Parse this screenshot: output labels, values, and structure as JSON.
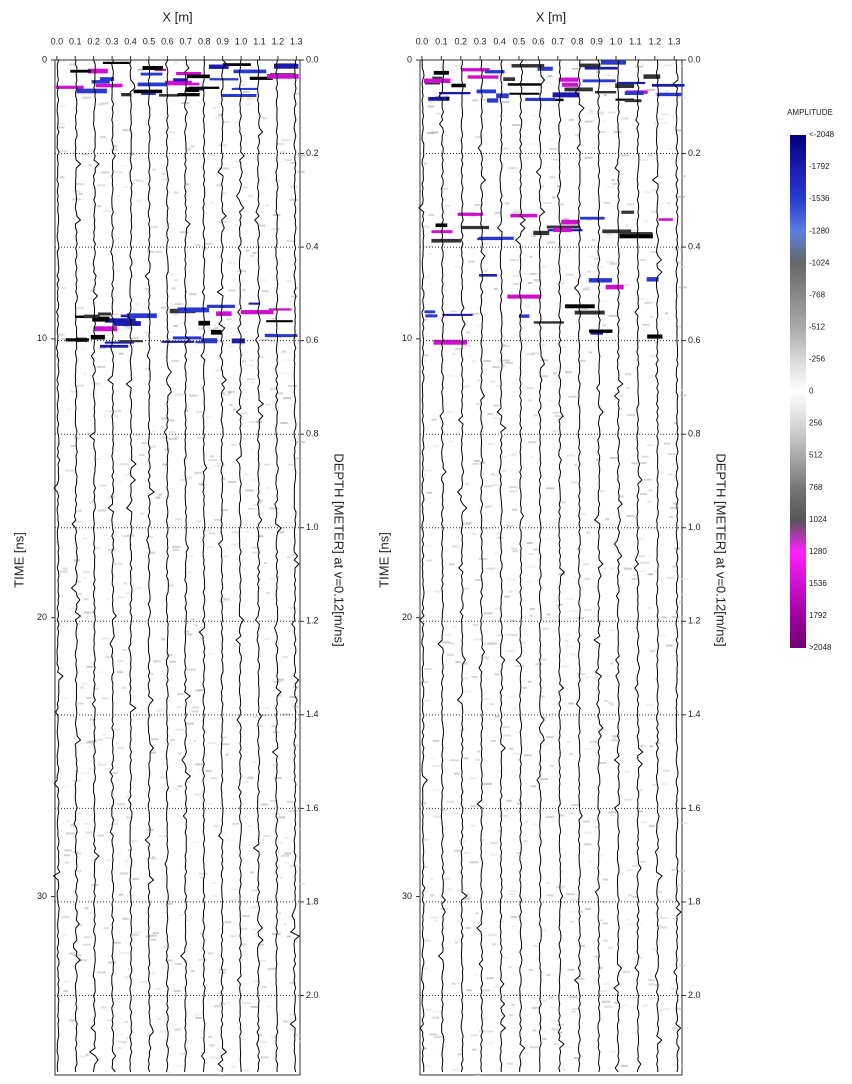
{
  "chart_data": [
    {
      "type": "radargram",
      "xlabel": "X [m]",
      "ylabel": "TIME [ns]",
      "y2label": "DEPTH [METER] at v=0.12[m/ns]",
      "xlim": [
        -0.01,
        1.32
      ],
      "xticks": [
        {
          "value": 0,
          "label": "0.0"
        },
        0.1,
        0.2,
        0.3,
        0.4,
        0.5,
        0.6,
        0.7,
        0.8,
        0.9,
        {
          "value": 1,
          "label": "1.0"
        },
        1.1,
        1.2,
        1.3
      ],
      "ylim": [
        0,
        36.4
      ],
      "yticks": [
        0,
        10,
        20,
        30
      ],
      "y2lim": [
        0,
        2.17
      ],
      "y2ticks": [
        {
          "value": 0,
          "label": "0.0"
        },
        0.2,
        0.4,
        0.6,
        0.8,
        {
          "value": 1,
          "label": "1.0"
        },
        1.2,
        1.4,
        1.6,
        1.8,
        {
          "value": 2,
          "label": "2.0"
        }
      ]
    },
    {
      "type": "radargram",
      "xlabel": "X [m]",
      "ylabel": "TIME [ns]",
      "y2label": "DEPTH [METER] at v=0.12[m/ns]",
      "xlim": [
        -0.01,
        1.34
      ],
      "xticks": [
        {
          "value": 0,
          "label": "0.0"
        },
        0.1,
        0.2,
        0.3,
        0.4,
        0.5,
        0.6,
        0.7,
        0.8,
        0.9,
        {
          "value": 1,
          "label": "1.0"
        },
        1.1,
        1.2,
        1.3
      ],
      "ylim": [
        0,
        36.4
      ],
      "yticks": [
        0,
        10,
        20,
        30
      ],
      "y2lim": [
        0,
        2.17
      ],
      "y2ticks": [
        {
          "value": 0,
          "label": "0.0"
        },
        0.2,
        0.4,
        0.6,
        0.8,
        {
          "value": 1,
          "label": "1.0"
        },
        1.2,
        1.4,
        1.6,
        1.8,
        {
          "value": 2,
          "label": "2.0"
        }
      ]
    }
  ],
  "colorbar": {
    "title": "AMPLITUDE",
    "ticks": [
      {
        "value": -2048,
        "label": "<-2048"
      },
      -1792,
      -1536,
      -1280,
      -1024,
      -768,
      -512,
      -256,
      0,
      256,
      512,
      768,
      1024,
      1280,
      1536,
      1792,
      {
        "value": 2048,
        "label": ">2048"
      }
    ],
    "colors": [
      "#00007a",
      "#1a1ab0",
      "#2a3ad0",
      "#5a80e0",
      "#666666",
      "#888888",
      "#aaaaaa",
      "#d8d8d8",
      "#ffffff",
      "#d8d8d8",
      "#aaaaaa",
      "#777777",
      "#555555",
      "#ff20ff",
      "#d010d0",
      "#a000a0",
      "#700070"
    ]
  }
}
